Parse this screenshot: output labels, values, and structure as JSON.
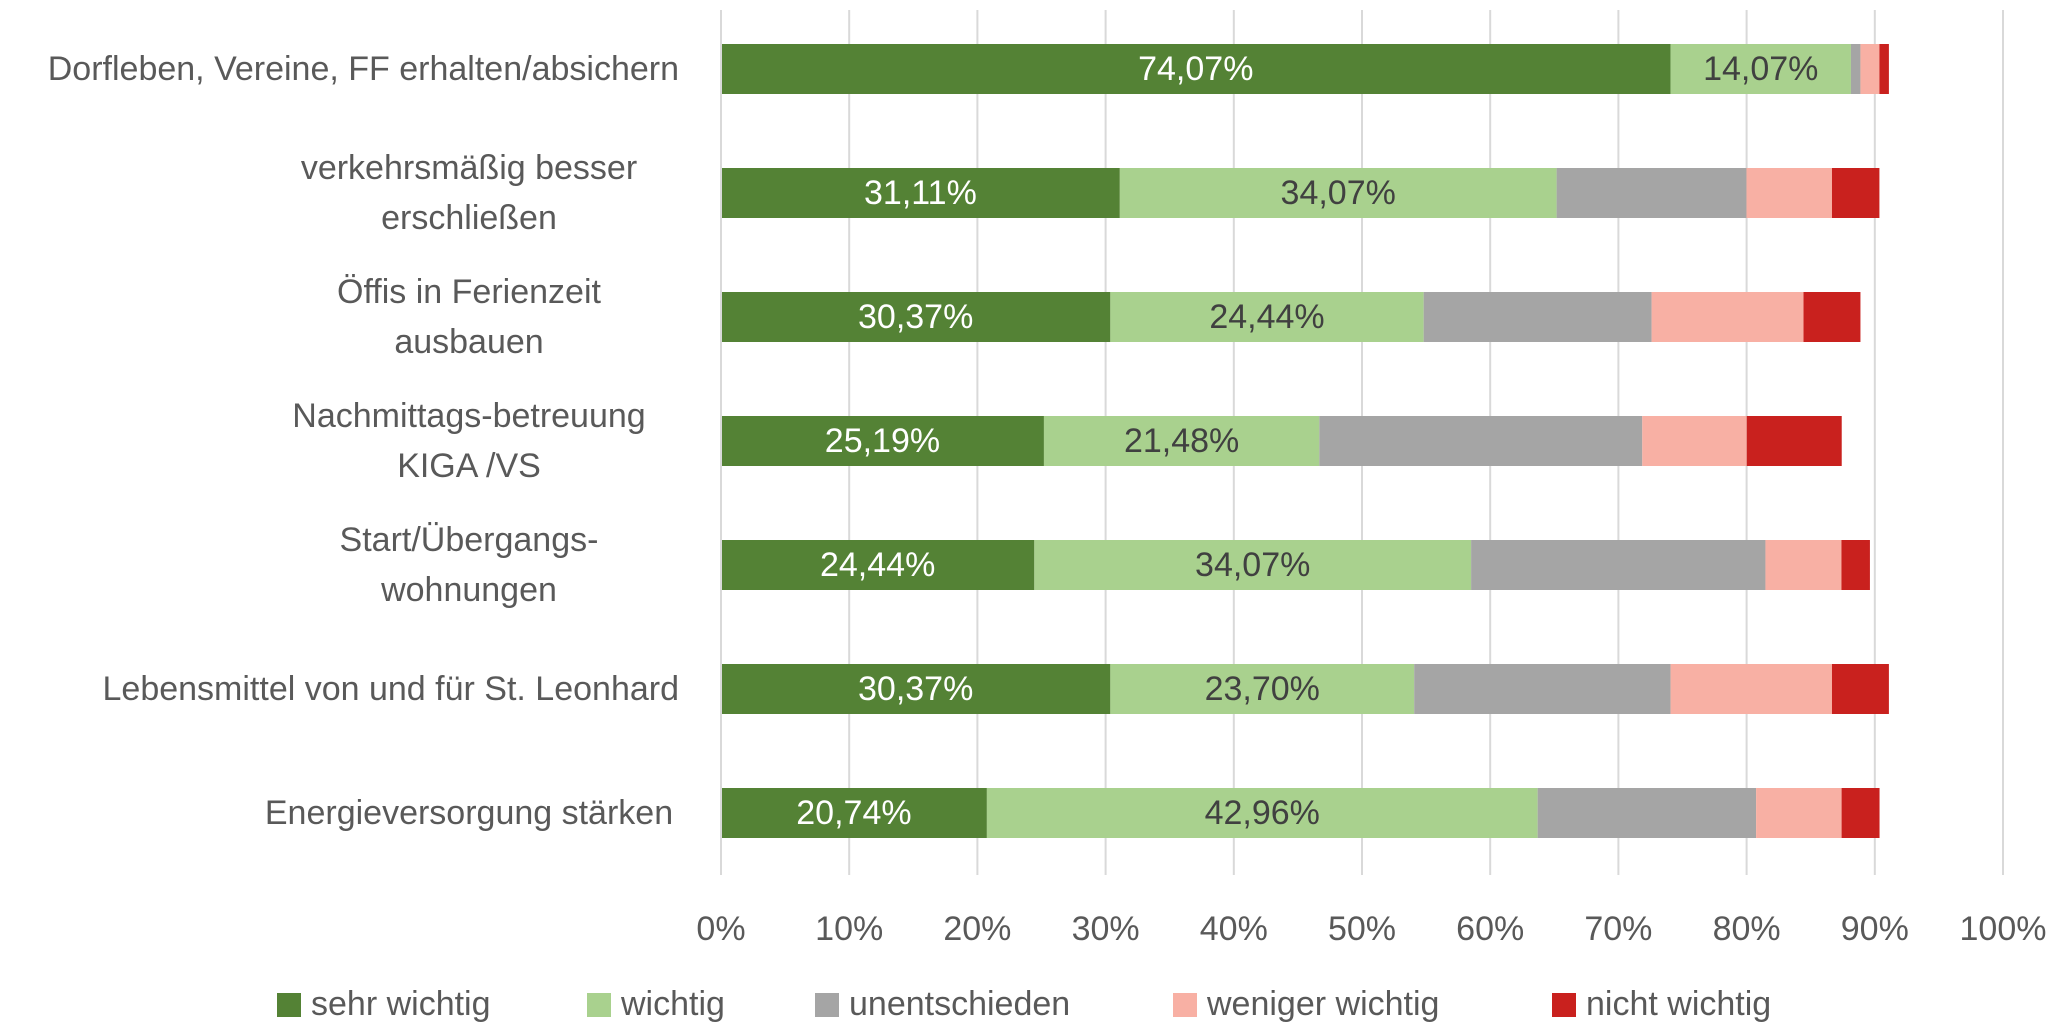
{
  "chart_data": {
    "type": "stacked-bar-horizontal",
    "categories": [
      "Dorfleben, Vereine, FF erhalten/absichern",
      "verkehrsmäßig besser erschließen",
      "Öffis in Ferienzeit ausbauen",
      "Nachmittags-betreuung KIGA /VS",
      "Start/Übergangs-wohnungen",
      "Lebensmittel von und für St. Leonhard",
      "Energieversorgung stärken"
    ],
    "series": [
      {
        "name": "sehr wichtig",
        "color": "#548235",
        "values": [
          74.07,
          31.11,
          30.37,
          25.19,
          24.44,
          30.37,
          20.74
        ],
        "value_labels": [
          "74,07%",
          "31,11%",
          "30,37%",
          "25,19%",
          "24,44%",
          "30,37%",
          "20,74%"
        ]
      },
      {
        "name": "wichtig",
        "color": "#a9d18e",
        "values": [
          14.07,
          34.07,
          24.44,
          21.48,
          34.07,
          23.7,
          42.96
        ],
        "value_labels": [
          "14,07%",
          "34,07%",
          "24,44%",
          "21,48%",
          "34,07%",
          "23,70%",
          "42,96%"
        ]
      },
      {
        "name": "unentschieden",
        "color": "#a5a5a5",
        "values": [
          0.74,
          14.81,
          17.78,
          25.19,
          22.96,
          20.0,
          17.04
        ]
      },
      {
        "name": "weniger wichtig",
        "color": "#f8b0a4",
        "values": [
          1.48,
          6.67,
          11.85,
          8.15,
          5.93,
          12.59,
          6.67
        ]
      },
      {
        "name": "nicht wichtig",
        "color": "#c9211e",
        "values": [
          0.74,
          3.7,
          4.44,
          7.41,
          2.22,
          4.44,
          2.96
        ]
      }
    ],
    "xlim": [
      0,
      100
    ],
    "xticks": [
      {
        "value": 0,
        "label": "0%"
      },
      {
        "value": 10,
        "label": "10%"
      },
      {
        "value": 20,
        "label": "20%"
      },
      {
        "value": 30,
        "label": "30%"
      },
      {
        "value": 40,
        "label": "40%"
      },
      {
        "value": 50,
        "label": "50%"
      },
      {
        "value": 60,
        "label": "60%"
      },
      {
        "value": 70,
        "label": "70%"
      },
      {
        "value": 80,
        "label": "80%"
      },
      {
        "value": 90,
        "label": "90%"
      },
      {
        "value": 100,
        "label": "100%"
      }
    ],
    "grid": true,
    "legend": "bottom"
  }
}
